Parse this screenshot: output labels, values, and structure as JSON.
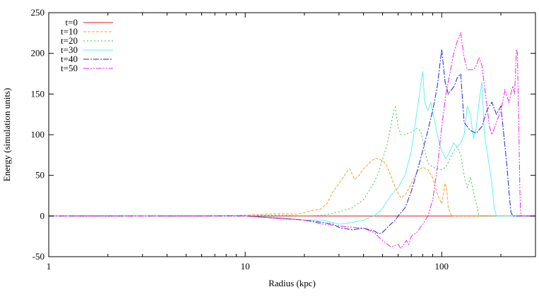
{
  "chart_data": {
    "type": "line",
    "title": "",
    "xlabel": "Radius (kpc)",
    "ylabel": "Energy (simulation units)",
    "xscale": "log",
    "xlim": [
      1,
      300
    ],
    "ylim": [
      -50,
      250
    ],
    "x_ticks": [
      1,
      10,
      100
    ],
    "x_tick_labels": [
      "1",
      "10",
      "100"
    ],
    "y_ticks": [
      -50,
      0,
      50,
      100,
      150,
      200,
      250
    ],
    "y_tick_labels": [
      "-50",
      "0",
      "50",
      "100",
      "150",
      "200",
      "250"
    ],
    "legend_position": "top-left",
    "grid": false,
    "series": [
      {
        "name": "t=0",
        "color": "#e41a1c",
        "dash": "solid",
        "x": [
          1,
          10,
          100,
          300
        ],
        "y": [
          0,
          0,
          0,
          0
        ]
      },
      {
        "name": "t=10",
        "color": "#f5a030",
        "dash": "4,2",
        "x": [
          1,
          5,
          10,
          12,
          15,
          18,
          20,
          22,
          24,
          26,
          28,
          30,
          32,
          33,
          34,
          36,
          38,
          40,
          42,
          44,
          46,
          48,
          50,
          52,
          55,
          58,
          62,
          66,
          70,
          75,
          80,
          85,
          90,
          95,
          100,
          104,
          106,
          108,
          110,
          112,
          115,
          300
        ],
        "y": [
          0,
          0,
          1,
          2,
          3,
          2,
          4,
          7,
          8,
          15,
          30,
          40,
          50,
          55,
          58,
          45,
          50,
          58,
          63,
          68,
          71,
          70,
          68,
          64,
          50,
          35,
          22,
          28,
          40,
          55,
          60,
          57,
          47,
          27,
          15,
          40,
          35,
          10,
          5,
          1,
          0,
          0
        ]
      },
      {
        "name": "t=20",
        "color": "#33cc33",
        "dash": "2,3",
        "x": [
          1,
          5,
          10,
          12,
          15,
          20,
          25,
          30,
          35,
          40,
          45,
          48,
          50,
          53,
          55,
          57,
          58,
          60,
          62,
          65,
          70,
          75,
          78,
          80,
          82,
          85,
          90,
          95,
          100,
          105,
          110,
          115,
          120,
          125,
          128,
          130,
          133,
          135,
          140,
          145,
          150,
          155,
          300
        ],
        "y": [
          0,
          0,
          0,
          1,
          1,
          0,
          1,
          5,
          10,
          20,
          40,
          55,
          70,
          90,
          110,
          130,
          134,
          110,
          100,
          100,
          103,
          108,
          105,
          95,
          80,
          65,
          60,
          58,
          57,
          60,
          70,
          80,
          85,
          75,
          60,
          50,
          40,
          35,
          48,
          30,
          15,
          0,
          0
        ]
      },
      {
        "name": "t=30",
        "color": "#66f0f0",
        "dash": "solid",
        "x": [
          1,
          5,
          10,
          15,
          20,
          25,
          30,
          35,
          40,
          45,
          48,
          50,
          55,
          60,
          65,
          70,
          72,
          75,
          78,
          80,
          82,
          85,
          88,
          90,
          95,
          100,
          105,
          110,
          115,
          120,
          125,
          130,
          135,
          140,
          145,
          150,
          155,
          160,
          165,
          170,
          175,
          180,
          185,
          190,
          300
        ],
        "y": [
          0,
          0,
          0,
          -2,
          -5,
          -5,
          -10,
          -8,
          -5,
          0,
          5,
          10,
          25,
          35,
          50,
          80,
          100,
          130,
          160,
          178,
          140,
          130,
          140,
          128,
          100,
          80,
          70,
          80,
          90,
          85,
          90,
          100,
          135,
          125,
          95,
          110,
          140,
          165,
          100,
          80,
          60,
          40,
          10,
          0,
          0
        ]
      },
      {
        "name": "t=40",
        "color": "#2222cc",
        "dash": "8,2,2,2",
        "x": [
          1,
          5,
          10,
          15,
          20,
          25,
          28,
          30,
          35,
          40,
          45,
          48,
          50,
          55,
          58,
          60,
          65,
          70,
          75,
          80,
          85,
          90,
          95,
          100,
          104,
          108,
          112,
          116,
          120,
          125,
          130,
          135,
          140,
          150,
          160,
          170,
          180,
          190,
          200,
          205,
          210,
          215,
          220,
          225,
          230,
          300
        ],
        "y": [
          0,
          0,
          0,
          -3,
          -5,
          -8,
          -10,
          -14,
          -17,
          -15,
          -18,
          -22,
          -20,
          -10,
          -5,
          0,
          10,
          30,
          55,
          80,
          105,
          130,
          160,
          205,
          165,
          150,
          155,
          160,
          170,
          175,
          115,
          110,
          105,
          102,
          110,
          130,
          140,
          125,
          135,
          110,
          85,
          60,
          30,
          5,
          0,
          0
        ]
      },
      {
        "name": "t=50",
        "color": "#ee22ee",
        "dash": "8,2,2,2,2,2",
        "x": [
          1,
          5,
          10,
          15,
          20,
          25,
          30,
          35,
          40,
          45,
          50,
          55,
          60,
          62,
          64,
          66,
          68,
          70,
          75,
          80,
          85,
          90,
          95,
          100,
          105,
          110,
          115,
          120,
          125,
          130,
          135,
          140,
          145,
          150,
          155,
          160,
          165,
          170,
          175,
          180,
          190,
          200,
          210,
          220,
          230,
          235,
          240,
          243,
          245,
          248,
          250,
          252,
          255,
          300
        ],
        "y": [
          0,
          0,
          0,
          -3,
          -5,
          -10,
          -12,
          -14,
          -15,
          -20,
          -30,
          -38,
          -35,
          -40,
          -35,
          -30,
          -35,
          -25,
          -20,
          -10,
          0,
          20,
          60,
          110,
          150,
          175,
          200,
          215,
          225,
          195,
          180,
          180,
          180,
          185,
          195,
          185,
          160,
          135,
          110,
          100,
          115,
          130,
          155,
          140,
          160,
          150,
          205,
          200,
          150,
          80,
          30,
          5,
          0,
          0
        ]
      }
    ]
  }
}
